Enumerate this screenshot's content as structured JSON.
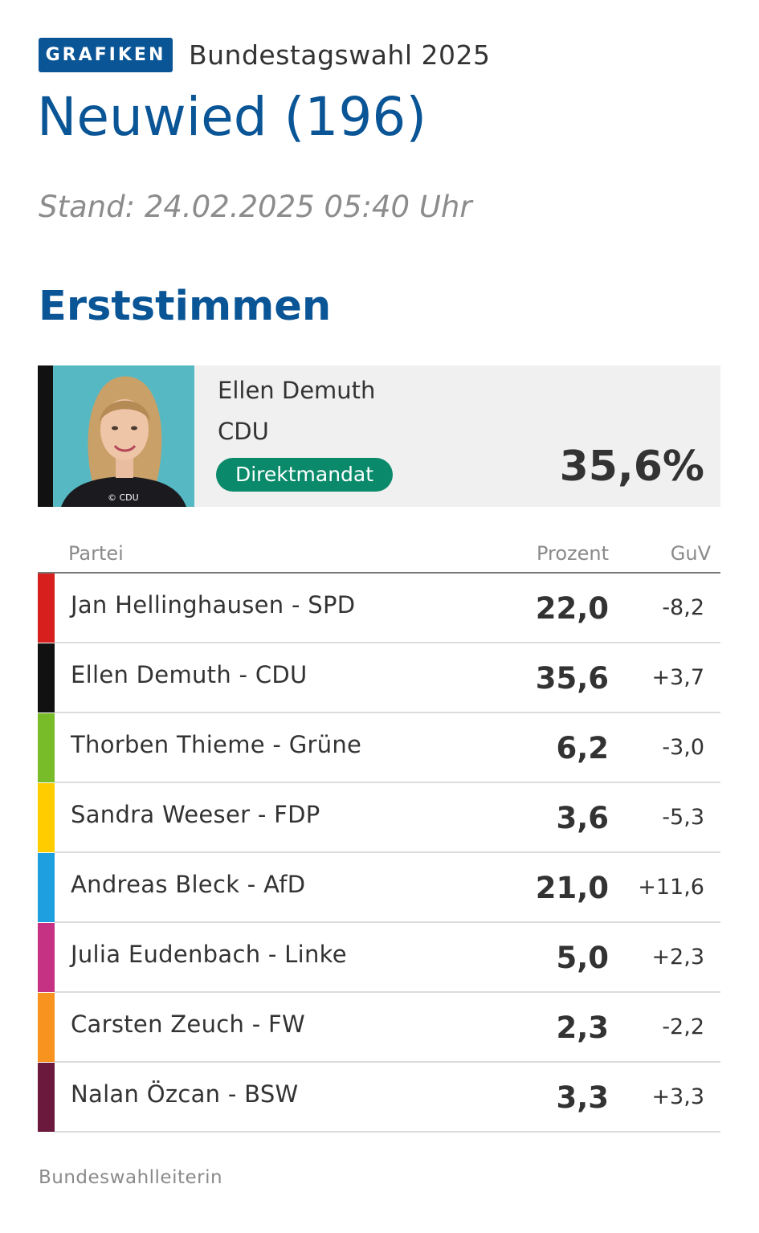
{
  "header": {
    "badge": "GRAFIKEN",
    "kicker": "Bundestagswahl 2025",
    "title": "Neuwied (196)",
    "stand": "Stand: 24.02.2025 05:40 Uhr"
  },
  "section": {
    "title": "Erststimmen"
  },
  "winner": {
    "name": "Ellen Demuth",
    "party": "CDU",
    "badge": "Direktmandat",
    "percent": "35,6%",
    "photo_credit": "© CDU",
    "color": "#111111"
  },
  "table": {
    "columns": {
      "party": "Partei",
      "percent": "Prozent",
      "guv": "GuV"
    }
  },
  "chart_data": {
    "type": "table",
    "columns": [
      "Partei",
      "Prozent",
      "GuV"
    ],
    "rows": [
      {
        "label": "Jan Hellinghausen - SPD",
        "percent": "22,0",
        "guv": "-8,2",
        "value": 22.0,
        "change": -8.2,
        "color": "#d71f1d"
      },
      {
        "label": "Ellen Demuth - CDU",
        "percent": "35,6",
        "guv": "+3,7",
        "value": 35.6,
        "change": 3.7,
        "color": "#111111"
      },
      {
        "label": "Thorben Thieme - Grüne",
        "percent": "6,2",
        "guv": "-3,0",
        "value": 6.2,
        "change": -3.0,
        "color": "#78bc2a"
      },
      {
        "label": "Sandra Weeser - FDP",
        "percent": "3,6",
        "guv": "-5,3",
        "value": 3.6,
        "change": -5.3,
        "color": "#ffcc00"
      },
      {
        "label": "Andreas Bleck - AfD",
        "percent": "21,0",
        "guv": "+11,6",
        "value": 21.0,
        "change": 11.6,
        "color": "#1e9fe0"
      },
      {
        "label": "Julia Eudenbach - Linke",
        "percent": "5,0",
        "guv": "+2,3",
        "value": 5.0,
        "change": 2.3,
        "color": "#c63283"
      },
      {
        "label": "Carsten Zeuch - FW",
        "percent": "2,3",
        "guv": "-2,2",
        "value": 2.3,
        "change": -2.2,
        "color": "#f7931e"
      },
      {
        "label": "Nalan Özcan - BSW",
        "percent": "3,3",
        "guv": "+3,3",
        "value": 3.3,
        "change": 3.3,
        "color": "#6b1a3e"
      }
    ]
  },
  "footer": {
    "source": "Bundeswahlleiterin"
  },
  "colors": {
    "accent": "#0a5596",
    "mandat": "#0a8a6b",
    "photo_bg": "#56b8c3"
  }
}
